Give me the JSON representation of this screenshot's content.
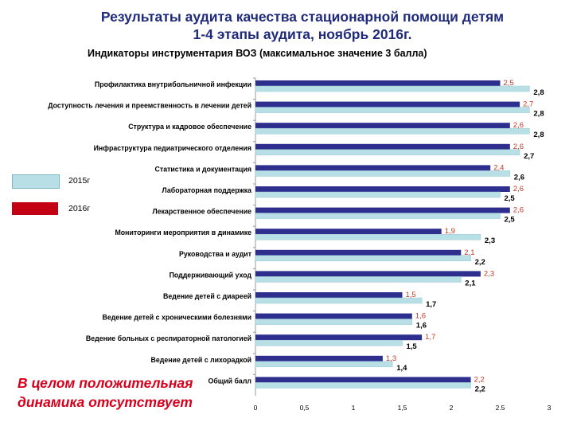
{
  "header": {
    "title_line1": "Результаты аудита качества стационарной помощи детям",
    "title_line2": "1-4 этапы  аудита, ноябрь 2016г.",
    "subtitle": "Индикаторы инструментария ВОЗ (максимальное значение 3  балла)"
  },
  "conclusion": {
    "line1": "В целом положительная",
    "line2": "динамика отсутствует"
  },
  "chart_data": {
    "type": "bar",
    "orientation": "horizontal",
    "categories": [
      "Профилактика внутрибольничной инфекции",
      "Доступность лечения и преемственность в лечении детей",
      "Структура и кадровое обеспечение",
      "Инфраструктура педиатрического отделения",
      "Статистика и документация",
      "Лабораторная поддержка",
      "Лекарственное обеспечение",
      "Мониторинги мероприятия в динамике",
      "Руководства и аудит",
      "Поддерживающий уход",
      "Ведение детей с диареей",
      "Ведение детей с хроническими болезнями",
      "Ведение больных с респираторной патологией",
      "Ведение детей с лихорадкой",
      "Общий балл"
    ],
    "series": [
      {
        "name": "2016г",
        "color": "#2e2e8f",
        "values": [
          2.5,
          2.7,
          2.6,
          2.6,
          2.4,
          2.6,
          2.6,
          1.9,
          2.1,
          2.3,
          1.5,
          1.6,
          1.7,
          1.3,
          2.2
        ],
        "labels": [
          "2,5",
          "2,7",
          "2,6",
          "2,6",
          "2,4",
          "2,6",
          "2,6",
          "1,9",
          "2,1",
          "2,3",
          "1,5",
          "1,6",
          "1,7",
          "1,3",
          "2,2"
        ]
      },
      {
        "name": "2015г",
        "color": "#b8dfe6",
        "values": [
          2.8,
          2.8,
          2.8,
          2.7,
          2.6,
          2.5,
          2.5,
          2.3,
          2.2,
          2.1,
          1.7,
          1.6,
          1.5,
          1.4,
          2.2
        ],
        "labels": [
          "2,8",
          "2,8",
          "2,8",
          "2,7",
          "2,6",
          "2,5",
          "2,5",
          "2,3",
          "2,2",
          "2,1",
          "1,7",
          "1,6",
          "1,5",
          "1,4",
          "2,2"
        ]
      }
    ],
    "xlim": [
      0,
      3
    ],
    "x_ticks": [
      0,
      0.5,
      1,
      1.5,
      2,
      2.5,
      3
    ],
    "x_tick_labels": [
      "0",
      "0,5",
      "1",
      "1,5",
      "2",
      "2.5",
      "3"
    ],
    "grid": false,
    "legend_position": "left",
    "legend_order": [
      "2015г",
      "2016г"
    ]
  }
}
